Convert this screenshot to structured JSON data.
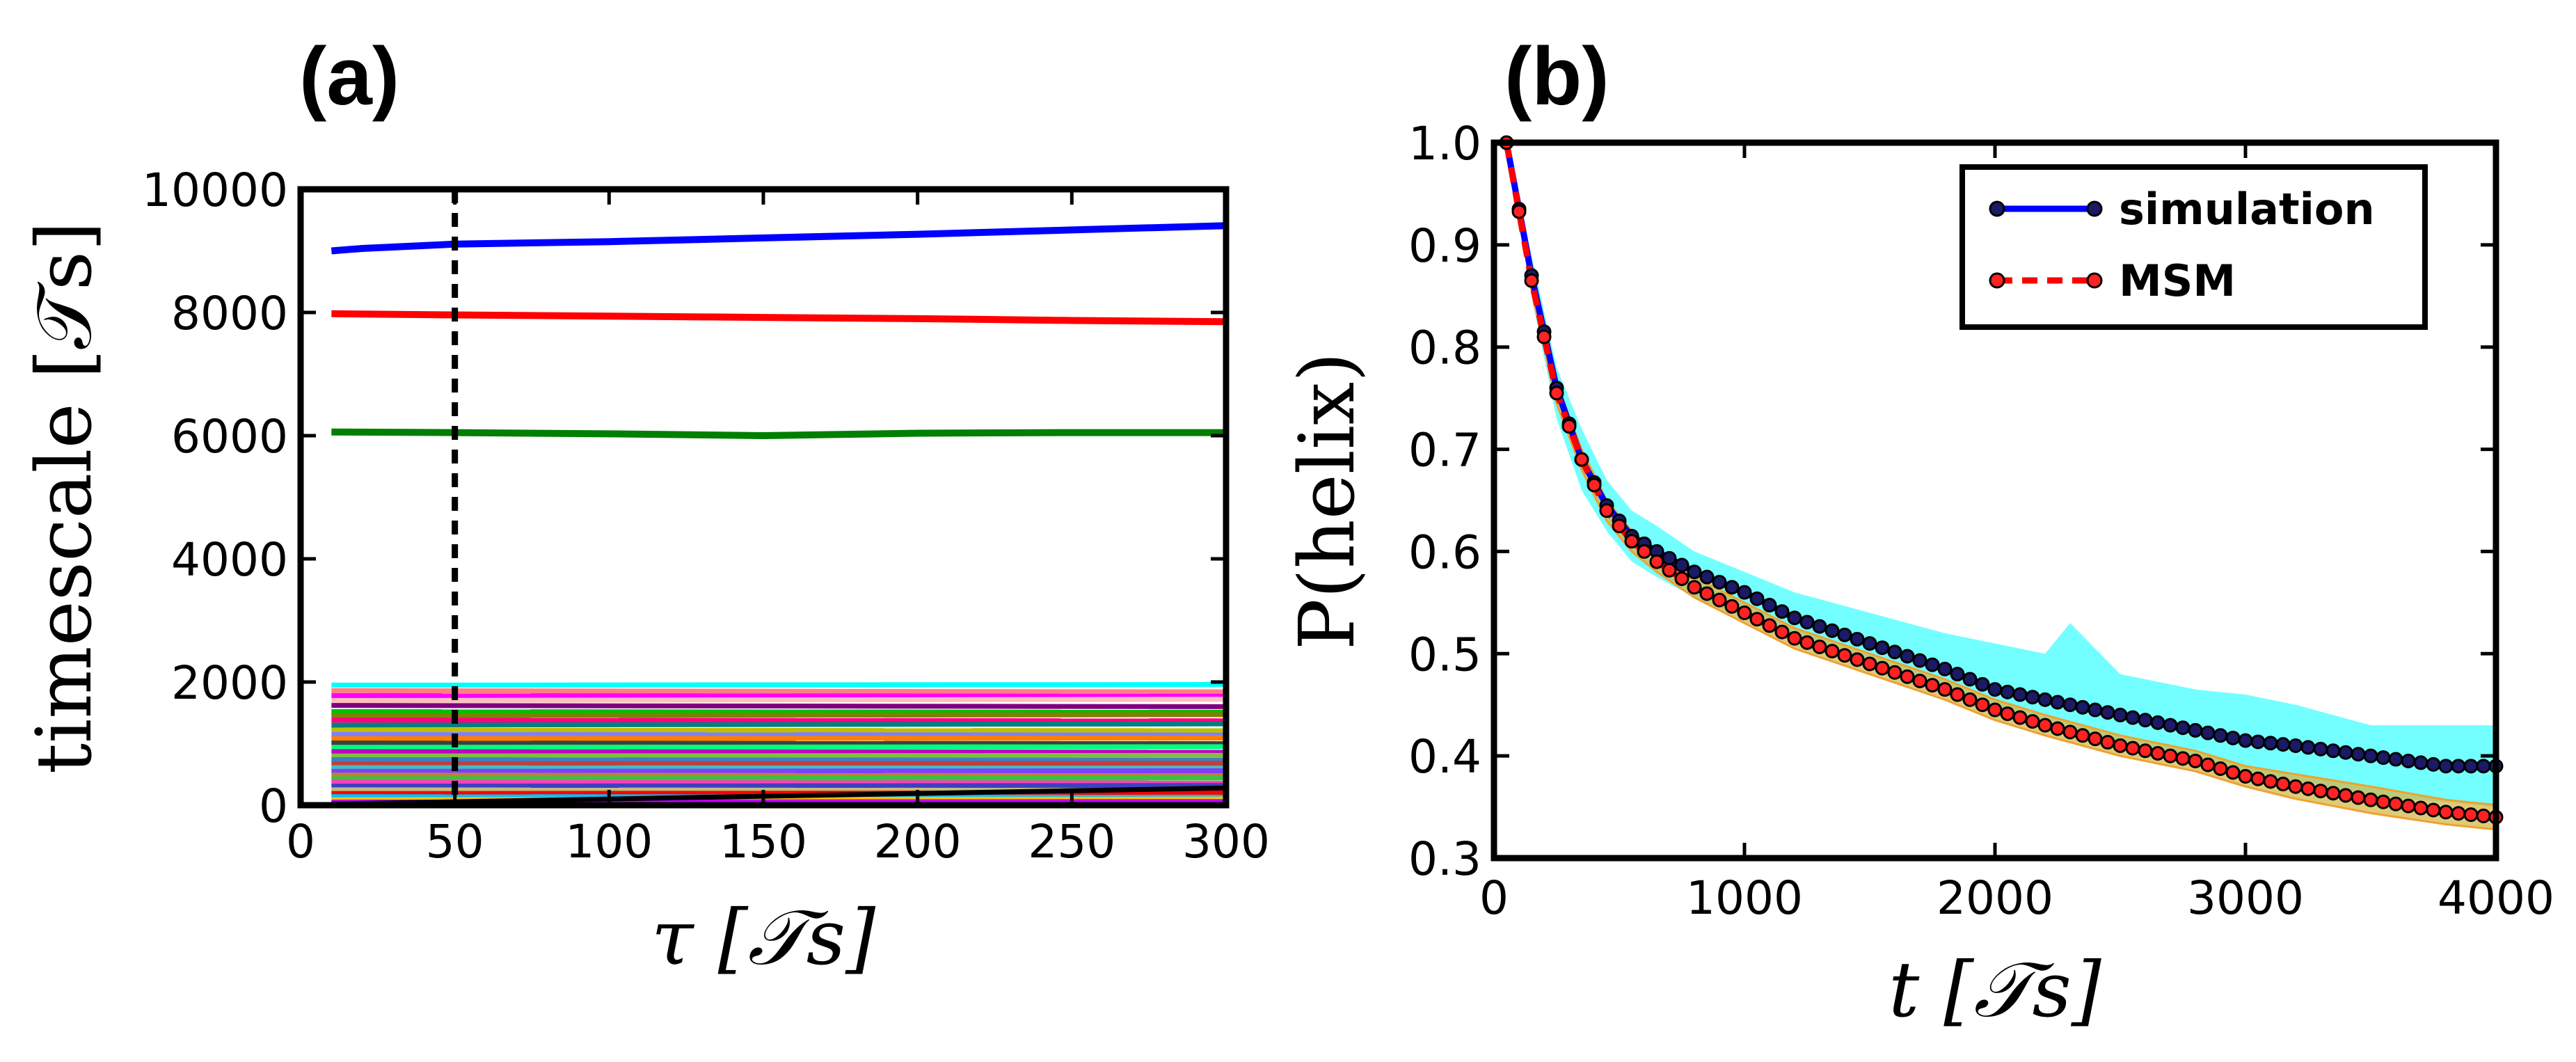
{
  "chart_data": [
    {
      "panel": "(a)",
      "type": "line",
      "xlabel": "τ [𝒯s]",
      "ylabel": "timescale [𝒯s]",
      "xlim": [
        0,
        300
      ],
      "ylim": [
        0,
        10000
      ],
      "xticks": [
        "0",
        "50",
        "100",
        "150",
        "200",
        "250",
        "300"
      ],
      "yticks": [
        "0",
        "2000",
        "4000",
        "6000",
        "8000",
        "10000"
      ],
      "vline_x": 50,
      "series": [
        {
          "name": "blue",
          "color": "#0000ff",
          "x": [
            10,
            20,
            50,
            100,
            150,
            200,
            250,
            300
          ],
          "values": [
            9000,
            9040,
            9110,
            9150,
            9210,
            9270,
            9340,
            9410
          ]
        },
        {
          "name": "red",
          "color": "#ff0000",
          "x": [
            10,
            50,
            100,
            150,
            200,
            250,
            300
          ],
          "values": [
            7980,
            7960,
            7940,
            7920,
            7900,
            7870,
            7850
          ]
        },
        {
          "name": "green",
          "color": "#007f00",
          "x": [
            10,
            50,
            100,
            150,
            200,
            250,
            300
          ],
          "values": [
            6060,
            6050,
            6030,
            6000,
            6040,
            6050,
            6050
          ]
        }
      ],
      "fast_series": [
        {
          "color": "#00ffff",
          "values": [
            1950,
            1960
          ]
        },
        {
          "color": "#ff7f7f",
          "values": [
            1860,
            1840
          ]
        },
        {
          "color": "#ff00ff",
          "values": [
            1780,
            1770
          ]
        },
        {
          "color": "#ffbfbf",
          "values": [
            1700,
            1720
          ]
        },
        {
          "color": "#7f007f",
          "values": [
            1620,
            1600
          ]
        },
        {
          "color": "#00bf00",
          "values": [
            1520,
            1510
          ]
        },
        {
          "color": "#7f7f00",
          "values": [
            1450,
            1470
          ]
        },
        {
          "color": "#ff007f",
          "values": [
            1380,
            1370
          ]
        },
        {
          "color": "#007f7f",
          "values": [
            1300,
            1320
          ]
        },
        {
          "color": "#bfbf00",
          "values": [
            1220,
            1210
          ]
        },
        {
          "color": "#7f7fff",
          "values": [
            1150,
            1140
          ]
        },
        {
          "color": "#ff7f00",
          "values": [
            1080,
            1090
          ]
        },
        {
          "color": "#3f3f3f",
          "values": [
            1010,
            1000
          ]
        },
        {
          "color": "#00ff7f",
          "values": [
            940,
            950
          ]
        },
        {
          "color": "#bf00bf",
          "values": [
            870,
            860
          ]
        },
        {
          "color": "#7fbf3f",
          "values": [
            800,
            810
          ]
        },
        {
          "color": "#3f7fbf",
          "values": [
            740,
            730
          ]
        },
        {
          "color": "#bf3f3f",
          "values": [
            670,
            680
          ]
        },
        {
          "color": "#3fbfbf",
          "values": [
            610,
            600
          ]
        },
        {
          "color": "#7f3fff",
          "values": [
            550,
            560
          ]
        },
        {
          "color": "#bf7f3f",
          "values": [
            490,
            480
          ]
        },
        {
          "color": "#3fbf3f",
          "values": [
            430,
            440
          ]
        },
        {
          "color": "#ff3fbf",
          "values": [
            370,
            360
          ]
        },
        {
          "color": "#3f3fbf",
          "values": [
            310,
            320
          ]
        },
        {
          "color": "#bfbf7f",
          "values": [
            250,
            240
          ]
        },
        {
          "color": "#ff0000",
          "values": [
            190,
            200
          ]
        },
        {
          "color": "#00bfff",
          "values": [
            140,
            130
          ]
        },
        {
          "color": "#ffbf00",
          "values": [
            90,
            100
          ]
        },
        {
          "color": "#bf00ff",
          "values": [
            50,
            60
          ]
        },
        {
          "color": "#000000",
          "values": [
            20,
            280
          ]
        }
      ]
    },
    {
      "panel": "(b)",
      "type": "line",
      "xlabel": "t [𝒯s]",
      "ylabel": "P(helix)",
      "xlim": [
        0,
        4000
      ],
      "ylim": [
        0.3,
        1.0
      ],
      "xticks": [
        "0",
        "1000",
        "2000",
        "3000",
        "4000"
      ],
      "yticks": [
        "0.3",
        "0.4",
        "0.5",
        "0.6",
        "0.7",
        "0.8",
        "0.9",
        "1.0"
      ],
      "legend_position": "top-right",
      "legend": [
        "simulation",
        "MSM"
      ],
      "series": [
        {
          "name": "simulation",
          "color": "#0000ff",
          "marker_fill": "#1a1a66",
          "style": "solid",
          "x": [
            50,
            150,
            250,
            350,
            450,
            550,
            650,
            800,
            1000,
            1200,
            1500,
            1800,
            2000,
            2200,
            2500,
            2800,
            3000,
            3200,
            3500,
            3800,
            4000
          ],
          "values": [
            1.0,
            0.87,
            0.76,
            0.69,
            0.645,
            0.615,
            0.6,
            0.58,
            0.56,
            0.535,
            0.51,
            0.485,
            0.465,
            0.455,
            0.44,
            0.425,
            0.415,
            0.41,
            0.4,
            0.39,
            0.39
          ]
        },
        {
          "name": "MSM",
          "color": "#ff0000",
          "marker_fill": "#ff2222",
          "style": "dashed",
          "x": [
            50,
            150,
            250,
            350,
            450,
            550,
            650,
            800,
            1000,
            1200,
            1500,
            1800,
            2000,
            2200,
            2500,
            2800,
            3000,
            3200,
            3500,
            3800,
            4000
          ],
          "values": [
            1.0,
            0.865,
            0.755,
            0.69,
            0.64,
            0.61,
            0.59,
            0.565,
            0.54,
            0.515,
            0.49,
            0.465,
            0.445,
            0.43,
            0.41,
            0.395,
            0.38,
            0.37,
            0.357,
            0.345,
            0.34
          ]
        }
      ],
      "bands": [
        {
          "name": "simulation-spread",
          "color": "#00ffff",
          "x": [
            50,
            150,
            250,
            350,
            450,
            550,
            650,
            800,
            1000,
            1200,
            1500,
            1800,
            2000,
            2200,
            2300,
            2500,
            2800,
            3000,
            3200,
            3500,
            3800,
            4000
          ],
          "upper": [
            1.0,
            0.89,
            0.78,
            0.72,
            0.67,
            0.64,
            0.625,
            0.6,
            0.58,
            0.56,
            0.54,
            0.52,
            0.51,
            0.5,
            0.53,
            0.48,
            0.465,
            0.46,
            0.45,
            0.43,
            0.43,
            0.43
          ],
          "lower": [
            1.0,
            0.85,
            0.73,
            0.66,
            0.62,
            0.59,
            0.575,
            0.555,
            0.535,
            0.51,
            0.485,
            0.46,
            0.44,
            0.435,
            0.43,
            0.41,
            0.395,
            0.385,
            0.375,
            0.36,
            0.355,
            0.35
          ]
        },
        {
          "name": "msm-spread",
          "color": "#d4b84a",
          "x": [
            50,
            150,
            250,
            350,
            450,
            550,
            650,
            800,
            1000,
            1200,
            1500,
            1800,
            2000,
            2200,
            2500,
            2800,
            3000,
            3200,
            3500,
            3800,
            4000
          ],
          "upper": [
            1.0,
            0.875,
            0.765,
            0.7,
            0.65,
            0.62,
            0.6,
            0.575,
            0.55,
            0.525,
            0.5,
            0.475,
            0.455,
            0.44,
            0.42,
            0.405,
            0.39,
            0.382,
            0.37,
            0.357,
            0.352
          ],
          "lower": [
            1.0,
            0.855,
            0.745,
            0.68,
            0.63,
            0.6,
            0.58,
            0.555,
            0.53,
            0.505,
            0.48,
            0.455,
            0.435,
            0.42,
            0.4,
            0.385,
            0.37,
            0.358,
            0.344,
            0.333,
            0.328
          ]
        }
      ]
    }
  ]
}
